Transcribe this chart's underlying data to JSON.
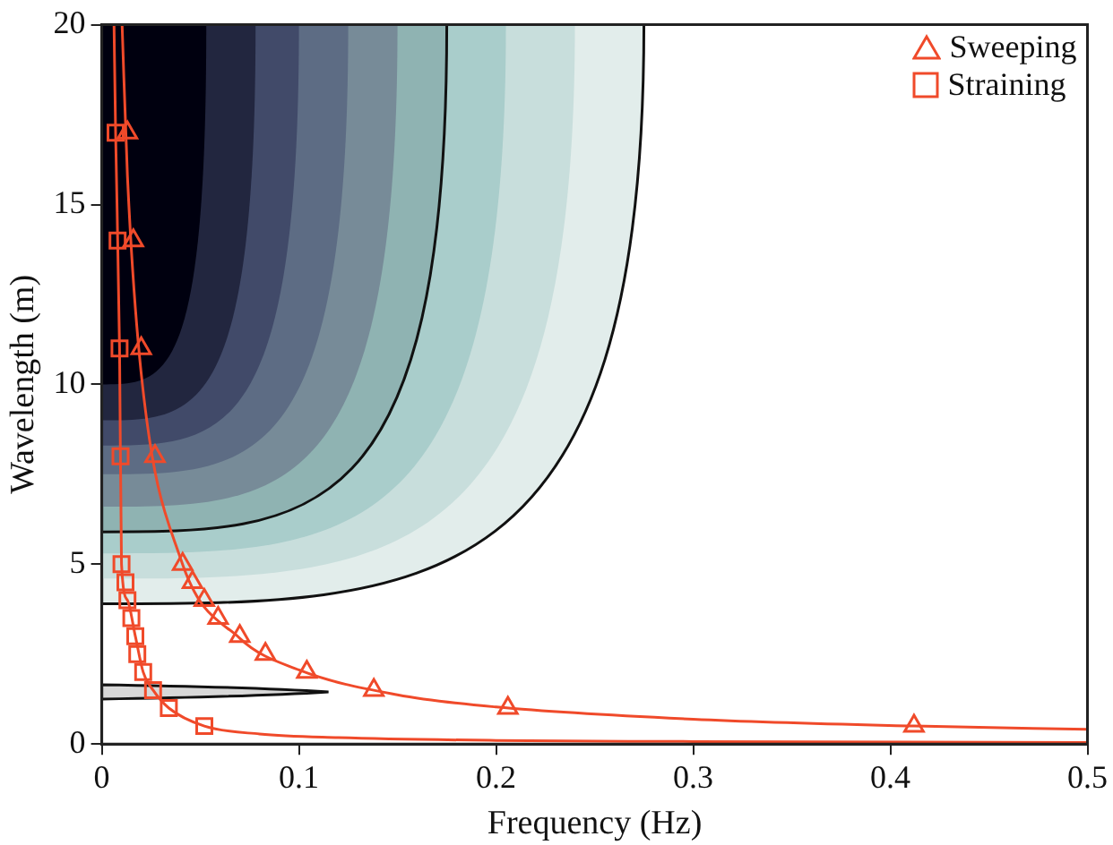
{
  "chart_data": {
    "type": "scatter",
    "xlabel": "Frequency (Hz)",
    "ylabel": "Wavelength (m)",
    "xlim": [
      0,
      0.5
    ],
    "xticks": [
      0,
      0.1,
      0.2,
      0.3,
      0.4,
      0.5
    ],
    "ylim": [
      0,
      20
    ],
    "yticks": [
      0,
      5,
      10,
      15,
      20
    ],
    "grid": false,
    "legend": "top right",
    "series": [
      {
        "name": "Sweeping",
        "type": "scatter",
        "marker": "triangle",
        "color": "#f04a2a",
        "x": [
          0.013,
          0.016,
          0.02,
          0.027,
          0.041,
          0.046,
          0.052,
          0.059,
          0.07,
          0.083,
          0.104,
          0.138,
          0.206,
          0.412
        ],
        "values": [
          17,
          14,
          11,
          8,
          5,
          4.5,
          4,
          3.5,
          3,
          2.5,
          2,
          1.5,
          1,
          0.5
        ]
      },
      {
        "name": "Straining",
        "type": "scatter",
        "marker": "square",
        "color": "#f04a2a",
        "x": [
          0.007,
          0.008,
          0.009,
          0.0095,
          0.01,
          0.012,
          0.013,
          0.015,
          0.017,
          0.018,
          0.021,
          0.026,
          0.034,
          0.052
        ],
        "values": [
          17,
          14,
          11,
          8,
          5,
          4.5,
          4,
          3.5,
          3,
          2.5,
          2,
          1.5,
          1,
          0.5
        ]
      },
      {
        "type": "line",
        "marker": "none",
        "color": "#f04a2a",
        "x": [
          0.0103,
          0.013,
          0.02,
          0.04,
          0.07,
          0.1,
          0.15,
          0.2,
          0.3,
          0.412,
          0.5
        ],
        "values": [
          20,
          15.8,
          10.3,
          5.15,
          2.94,
          2.06,
          1.37,
          1.03,
          0.69,
          0.5,
          0.41
        ]
      },
      {
        "type": "line",
        "marker": "none",
        "color": "#f04a2a",
        "x": [
          0.0062,
          0.007,
          0.009,
          0.01,
          0.013,
          0.017,
          0.021,
          0.026,
          0.034,
          0.052,
          0.08,
          0.12,
          0.2,
          0.3,
          0.5
        ],
        "values": [
          20,
          17,
          11,
          5,
          4,
          3,
          2,
          1.5,
          1,
          0.5,
          0.28,
          0.18,
          0.1,
          0.07,
          0.04
        ]
      }
    ]
  }
}
